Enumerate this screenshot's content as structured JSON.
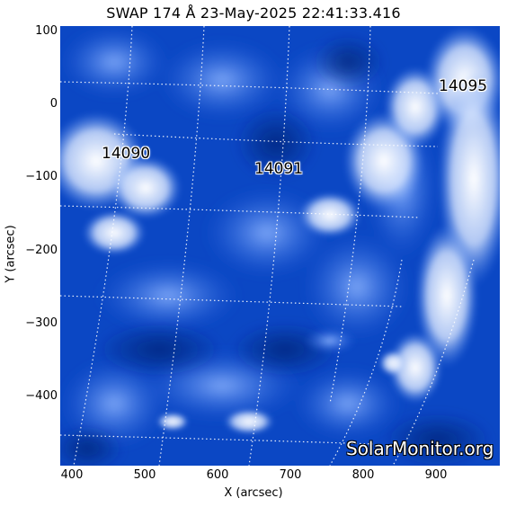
{
  "title": "SWAP 174 Å 23-May-2025 22:41:33.416",
  "axes": {
    "xlabel": "X (arcsec)",
    "ylabel": "Y (arcsec)",
    "xticks": [
      "400",
      "500",
      "600",
      "700",
      "800",
      "900"
    ],
    "yticks": [
      "100",
      "0",
      "−100",
      "−200",
      "−300",
      "−400"
    ]
  },
  "regions": [
    {
      "id": "14090",
      "label": "14090"
    },
    {
      "id": "14091",
      "label": "14091"
    },
    {
      "id": "14095",
      "label": "14095"
    }
  ],
  "watermark": "SolarMonitor.org",
  "colors": {
    "base": "#0a46c8",
    "bright": "#ffffff",
    "mid": "#5b8ff0",
    "dark": "#062d8f"
  }
}
